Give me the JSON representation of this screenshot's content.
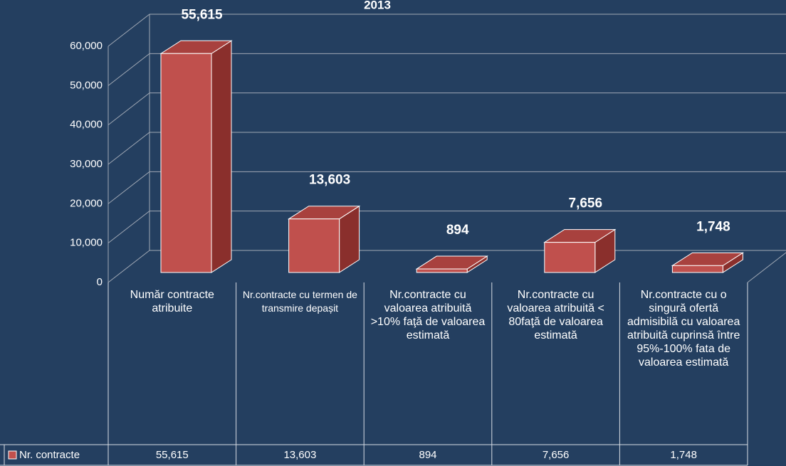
{
  "chart_data": {
    "type": "bar3d",
    "title": "2013",
    "categories": [
      "Număr contracte atribuite",
      "Nr.contracte cu termen de transmire depașit",
      "Nr.contracte cu valoarea atribuită >10% faţă de valoarea estimată",
      "Nr.contracte cu valoarea atribuită < 80faţă de valoarea estimată",
      "Nr.contracte cu o singură ofertă admisibilă cu valoarea atribuită cuprinsă între 95%-100% fata de valoarea estimată"
    ],
    "series": [
      {
        "name": "Nr. contracte",
        "color": "#c0504d",
        "values": [
          55615,
          13603,
          894,
          7656,
          1748
        ],
        "value_labels": [
          "55,615",
          "13,603",
          "894",
          "7,656",
          "1,748"
        ]
      }
    ],
    "ylim": [
      0,
      60000
    ],
    "yticks": [
      0,
      {
        "value": 10000,
        "label": "10,000"
      },
      {
        "value": 20000,
        "label": "20,000"
      },
      {
        "value": 30000,
        "label": "30,000"
      },
      {
        "value": 40000,
        "label": "40,000"
      },
      {
        "value": 50000,
        "label": "50,000"
      },
      {
        "value": 60000,
        "label": "60,000"
      }
    ],
    "grid": true,
    "data_table": true
  }
}
